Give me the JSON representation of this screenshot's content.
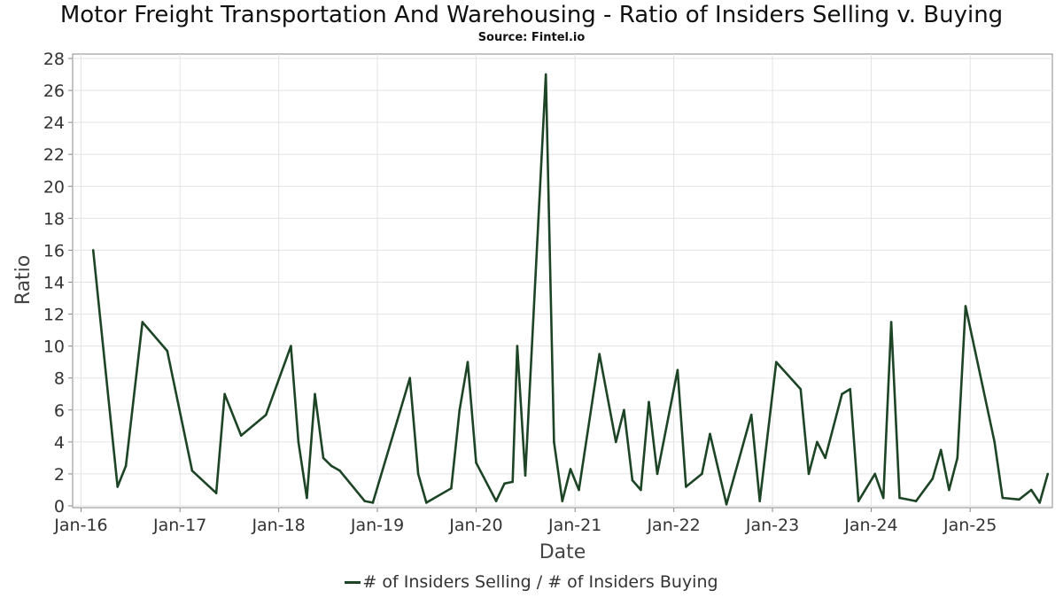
{
  "chart_data": {
    "type": "line",
    "title": "Motor Freight Transportation And Warehousing - Ratio of Insiders Selling v. Buying",
    "subtitle": "Source: Fintel.io",
    "xlabel": "Date",
    "ylabel": "Ratio",
    "x_ticks": [
      "Jan-16",
      "Jan-17",
      "Jan-18",
      "Jan-19",
      "Jan-20",
      "Jan-21",
      "Jan-22",
      "Jan-23",
      "Jan-24",
      "Jan-25"
    ],
    "y_ticks": [
      "0",
      "2",
      "4",
      "6",
      "8",
      "10",
      "12",
      "14",
      "16",
      "18",
      "20",
      "22",
      "24",
      "26",
      "28"
    ],
    "ylim": [
      0,
      28
    ],
    "xlim": [
      "2015-12-01",
      "2025-11-01"
    ],
    "grid": true,
    "legend": "bottom-center",
    "line_color": "#1c4425",
    "series": [
      {
        "name": "# of Insiders Selling / # of Insiders Buying",
        "points": [
          [
            "2016-02-15",
            16.0
          ],
          [
            "2016-05-15",
            1.2
          ],
          [
            "2016-06-15",
            2.5
          ],
          [
            "2016-08-15",
            11.5
          ],
          [
            "2016-11-15",
            9.7
          ],
          [
            "2017-02-15",
            2.2
          ],
          [
            "2017-05-15",
            0.8
          ],
          [
            "2017-06-15",
            7.0
          ],
          [
            "2017-08-15",
            4.4
          ],
          [
            "2017-11-15",
            5.7
          ],
          [
            "2018-02-15",
            10.0
          ],
          [
            "2018-03-15",
            4.0
          ],
          [
            "2018-04-15",
            0.5
          ],
          [
            "2018-05-15",
            7.0
          ],
          [
            "2018-06-15",
            3.0
          ],
          [
            "2018-07-15",
            2.5
          ],
          [
            "2018-08-15",
            2.2
          ],
          [
            "2018-11-15",
            0.3
          ],
          [
            "2018-12-15",
            0.2
          ],
          [
            "2019-03-15",
            5.3
          ],
          [
            "2019-05-01",
            8.0
          ],
          [
            "2019-06-01",
            2.0
          ],
          [
            "2019-07-01",
            0.2
          ],
          [
            "2019-10-01",
            1.1
          ],
          [
            "2019-11-01",
            6.0
          ],
          [
            "2019-12-01",
            9.0
          ],
          [
            "2020-01-01",
            2.7
          ],
          [
            "2020-03-15",
            0.3
          ],
          [
            "2020-04-15",
            1.4
          ],
          [
            "2020-05-15",
            1.5
          ],
          [
            "2020-06-01",
            10.0
          ],
          [
            "2020-07-01",
            1.9
          ],
          [
            "2020-09-15",
            27.0
          ],
          [
            "2020-10-15",
            4.0
          ],
          [
            "2020-11-15",
            0.3
          ],
          [
            "2020-12-15",
            2.3
          ],
          [
            "2021-01-15",
            1.0
          ],
          [
            "2021-04-01",
            9.5
          ],
          [
            "2021-06-01",
            4.0
          ],
          [
            "2021-07-01",
            6.0
          ],
          [
            "2021-08-01",
            1.6
          ],
          [
            "2021-09-01",
            1.0
          ],
          [
            "2021-10-01",
            6.5
          ],
          [
            "2021-11-01",
            2.0
          ],
          [
            "2022-01-15",
            8.5
          ],
          [
            "2022-02-15",
            1.2
          ],
          [
            "2022-04-15",
            2.0
          ],
          [
            "2022-05-15",
            4.5
          ],
          [
            "2022-07-15",
            0.1
          ],
          [
            "2022-10-15",
            5.7
          ],
          [
            "2022-11-15",
            0.3
          ],
          [
            "2023-01-15",
            9.0
          ],
          [
            "2023-04-15",
            7.3
          ],
          [
            "2023-05-15",
            2.0
          ],
          [
            "2023-06-15",
            4.0
          ],
          [
            "2023-07-15",
            3.0
          ],
          [
            "2023-09-15",
            7.0
          ],
          [
            "2023-10-15",
            7.3
          ],
          [
            "2023-11-15",
            0.3
          ],
          [
            "2024-01-15",
            2.0
          ],
          [
            "2024-02-15",
            0.5
          ],
          [
            "2024-03-15",
            11.5
          ],
          [
            "2024-04-15",
            0.5
          ],
          [
            "2024-06-15",
            0.3
          ],
          [
            "2024-08-15",
            1.7
          ],
          [
            "2024-09-15",
            3.5
          ],
          [
            "2024-10-15",
            1.0
          ],
          [
            "2024-11-15",
            3.0
          ],
          [
            "2024-12-15",
            12.5
          ],
          [
            "2025-04-01",
            4.0
          ],
          [
            "2025-05-01",
            0.5
          ],
          [
            "2025-07-01",
            0.4
          ],
          [
            "2025-08-15",
            1.0
          ],
          [
            "2025-09-15",
            0.2
          ],
          [
            "2025-10-15",
            2.0
          ]
        ]
      }
    ]
  }
}
